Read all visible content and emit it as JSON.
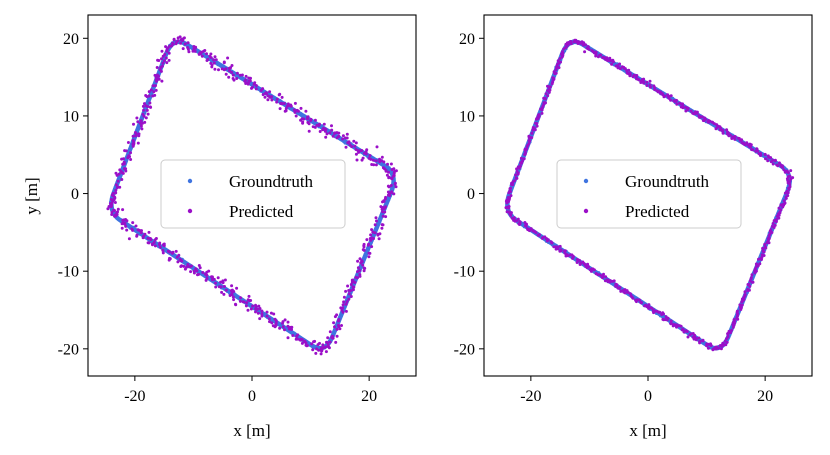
{
  "colors": {
    "groundtruth": "#3f74e0",
    "predicted": "#9b0fc8",
    "axis": "#000000",
    "legend_border": "#cccccc"
  },
  "chart_data": [
    {
      "type": "scatter",
      "title": "",
      "xlabel": "x [m]",
      "ylabel": "y [m]",
      "xlim": [
        -28,
        28
      ],
      "ylim": [
        -23.5,
        23
      ],
      "xticks": [
        -20,
        0,
        20
      ],
      "xtick_labels": [
        "-20",
        "0",
        "20"
      ],
      "yticks": [
        -20,
        -10,
        0,
        10,
        20
      ],
      "ytick_labels": [
        "-20",
        "-10",
        "0",
        "10",
        "20"
      ],
      "legend": {
        "location": "center",
        "entries": [
          "Groundtruth",
          "Predicted"
        ]
      },
      "trajectory_corners": [
        [
          -13.5,
          20.3
        ],
        [
          25.0,
          2.5
        ],
        [
          12.5,
          -20.7
        ],
        [
          -24.8,
          -2.3
        ]
      ],
      "series": [
        {
          "name": "Groundtruth",
          "color_key": "groundtruth",
          "noise": 0.15
        },
        {
          "name": "Predicted",
          "color_key": "predicted",
          "noise": 0.75
        }
      ]
    },
    {
      "type": "scatter",
      "title": "",
      "xlabel": "x [m]",
      "ylabel": "",
      "xlim": [
        -28,
        28
      ],
      "ylim": [
        -23.5,
        23
      ],
      "xticks": [
        -20,
        0,
        20
      ],
      "xtick_labels": [
        "-20",
        "0",
        "20"
      ],
      "yticks": [
        -20,
        -10,
        0,
        10,
        20
      ],
      "ytick_labels": [
        "-20",
        "-10",
        "0",
        "10",
        "20"
      ],
      "legend": {
        "location": "center",
        "entries": [
          "Groundtruth",
          "Predicted"
        ]
      },
      "trajectory_corners": [
        [
          -13.5,
          20.3
        ],
        [
          25.0,
          2.5
        ],
        [
          12.5,
          -20.7
        ],
        [
          -24.8,
          -2.3
        ]
      ],
      "series": [
        {
          "name": "Groundtruth",
          "color_key": "groundtruth",
          "noise": 0.15
        },
        {
          "name": "Predicted",
          "color_key": "predicted",
          "noise": 0.3
        }
      ]
    }
  ]
}
